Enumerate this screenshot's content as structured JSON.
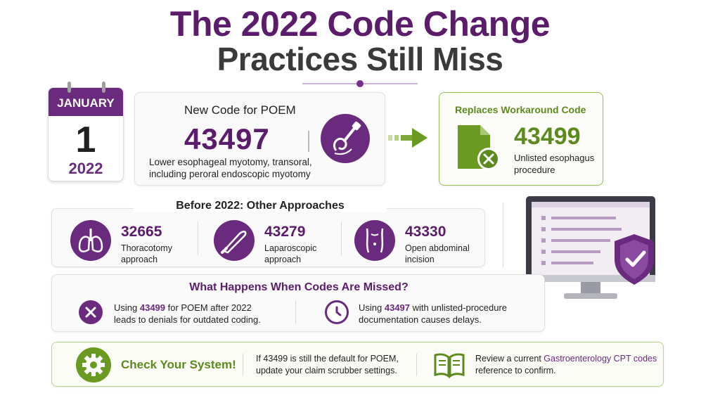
{
  "title": {
    "line1": "The 2022 Code Change",
    "line2": "Practices Still Miss"
  },
  "calendar": {
    "month": "JANUARY",
    "day": "1",
    "year": "2022"
  },
  "new_code": {
    "heading": "New Code for POEM",
    "code": "43497",
    "description": "Lower esophageal myotomy, transoral, including peroral endoscopic myotomy",
    "icon": "endoscope-icon"
  },
  "replaces": {
    "heading": "Replaces Workaround Code",
    "code": "43499",
    "description": "Unlisted esophagus procedure",
    "icon": "document-x-icon"
  },
  "before": {
    "heading": "Before 2022: Other Approaches",
    "items": [
      {
        "code": "32665",
        "description": "Thoracotomy approach",
        "icon": "lungs-icon"
      },
      {
        "code": "43279",
        "description": "Laparoscopic approach",
        "icon": "scalpel-icon"
      },
      {
        "code": "43330",
        "description": "Open abdominal incision",
        "icon": "abdomen-icon"
      }
    ]
  },
  "missed": {
    "heading": "What Happens When Codes Are Missed?",
    "items": [
      {
        "prefix": "Using ",
        "code": "43499",
        "suffix": " for POEM after 2022",
        "line2": "leads to denials for outdated coding.",
        "icon": "x-circle-icon"
      },
      {
        "prefix": "Using ",
        "code": "43497",
        "suffix": " with unlisted-procedure",
        "line2": "documentation causes delays.",
        "icon": "clock-icon"
      }
    ]
  },
  "check": {
    "heading": "Check Your System!",
    "text1_line1": "If 43499 is still the default for POEM,",
    "text1_line2": "update your claim scrubber settings.",
    "text2_prefix": "Review a current ",
    "text2_highlight": "Gastroenterology CPT codes",
    "text2_line2": "reference to confirm.",
    "icons": [
      "gear-icon",
      "book-icon"
    ]
  },
  "colors": {
    "purple": "#6a2a7e",
    "green": "#5d8a1e"
  }
}
